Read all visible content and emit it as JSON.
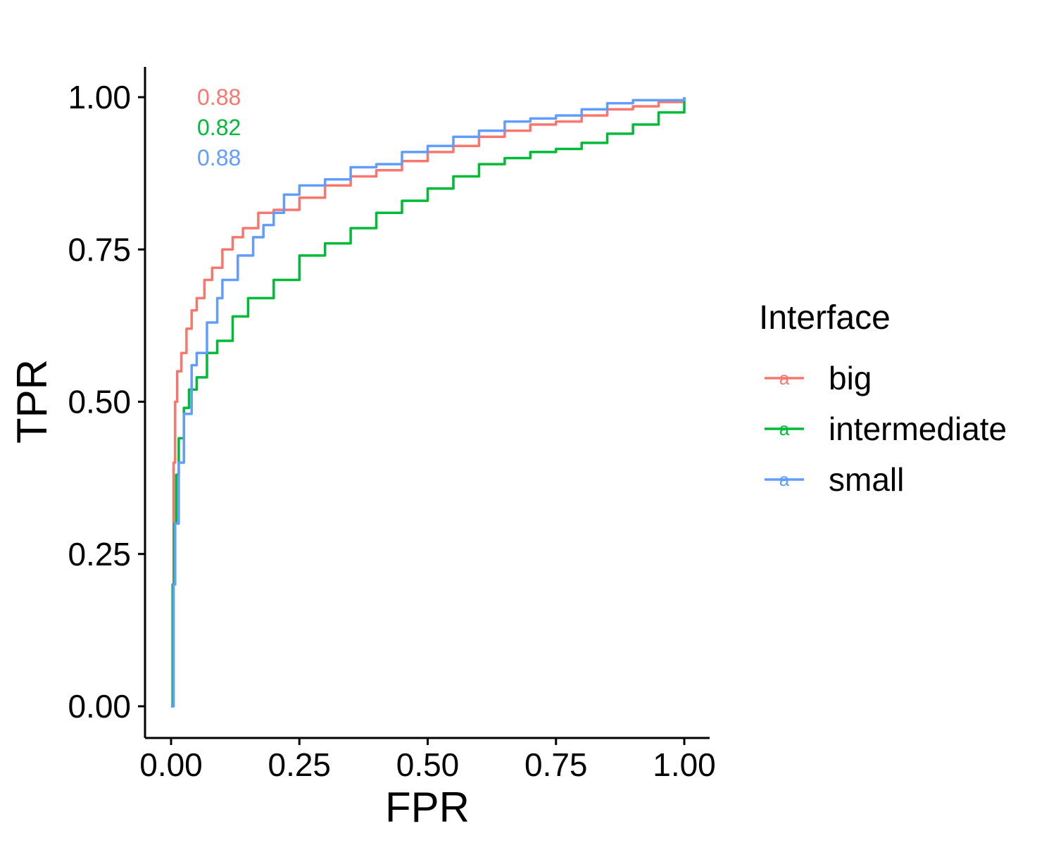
{
  "chart_data": {
    "type": "line",
    "title": "",
    "xlabel": "FPR",
    "ylabel": "TPR",
    "xlim": [
      0,
      1
    ],
    "ylim": [
      0,
      1
    ],
    "x_ticks": [
      "0.00",
      "0.25",
      "0.50",
      "0.75",
      "1.00"
    ],
    "y_ticks": [
      "0.00",
      "0.25",
      "0.50",
      "0.75",
      "1.00"
    ],
    "grid": false,
    "legend": {
      "title": "Interface",
      "placement": "right",
      "key_glyph": "a"
    },
    "annotations": [
      {
        "text": "0.88",
        "series": "big"
      },
      {
        "text": "0.82",
        "series": "intermediate"
      },
      {
        "text": "0.88",
        "series": "small"
      }
    ],
    "series": [
      {
        "name": "big",
        "color": "#F8766D",
        "points": [
          [
            0.0,
            0.0
          ],
          [
            0.003,
            0.2
          ],
          [
            0.005,
            0.4
          ],
          [
            0.008,
            0.5
          ],
          [
            0.012,
            0.55
          ],
          [
            0.02,
            0.58
          ],
          [
            0.03,
            0.62
          ],
          [
            0.04,
            0.65
          ],
          [
            0.05,
            0.67
          ],
          [
            0.065,
            0.7
          ],
          [
            0.08,
            0.72
          ],
          [
            0.1,
            0.75
          ],
          [
            0.12,
            0.77
          ],
          [
            0.14,
            0.785
          ],
          [
            0.17,
            0.81
          ],
          [
            0.2,
            0.815
          ],
          [
            0.25,
            0.835
          ],
          [
            0.3,
            0.855
          ],
          [
            0.35,
            0.87
          ],
          [
            0.4,
            0.88
          ],
          [
            0.45,
            0.895
          ],
          [
            0.5,
            0.91
          ],
          [
            0.55,
            0.92
          ],
          [
            0.6,
            0.935
          ],
          [
            0.65,
            0.945
          ],
          [
            0.7,
            0.955
          ],
          [
            0.75,
            0.96
          ],
          [
            0.8,
            0.97
          ],
          [
            0.85,
            0.98
          ],
          [
            0.9,
            0.985
          ],
          [
            0.95,
            0.992
          ],
          [
            1.0,
            1.0
          ]
        ]
      },
      {
        "name": "intermediate",
        "color": "#00BA38",
        "points": [
          [
            0.0,
            0.0
          ],
          [
            0.003,
            0.2
          ],
          [
            0.006,
            0.3
          ],
          [
            0.01,
            0.38
          ],
          [
            0.015,
            0.44
          ],
          [
            0.025,
            0.49
          ],
          [
            0.035,
            0.52
          ],
          [
            0.05,
            0.54
          ],
          [
            0.07,
            0.58
          ],
          [
            0.09,
            0.6
          ],
          [
            0.12,
            0.64
          ],
          [
            0.15,
            0.67
          ],
          [
            0.2,
            0.7
          ],
          [
            0.25,
            0.74
          ],
          [
            0.3,
            0.76
          ],
          [
            0.35,
            0.785
          ],
          [
            0.4,
            0.81
          ],
          [
            0.45,
            0.83
          ],
          [
            0.5,
            0.85
          ],
          [
            0.55,
            0.87
          ],
          [
            0.6,
            0.89
          ],
          [
            0.65,
            0.9
          ],
          [
            0.7,
            0.91
          ],
          [
            0.75,
            0.915
          ],
          [
            0.8,
            0.925
          ],
          [
            0.85,
            0.94
          ],
          [
            0.9,
            0.955
          ],
          [
            0.95,
            0.975
          ],
          [
            1.0,
            1.0
          ]
        ]
      },
      {
        "name": "small",
        "color": "#619CFF",
        "points": [
          [
            0.0,
            0.0
          ],
          [
            0.005,
            0.2
          ],
          [
            0.008,
            0.3
          ],
          [
            0.015,
            0.4
          ],
          [
            0.025,
            0.48
          ],
          [
            0.04,
            0.56
          ],
          [
            0.05,
            0.58
          ],
          [
            0.07,
            0.63
          ],
          [
            0.09,
            0.67
          ],
          [
            0.1,
            0.7
          ],
          [
            0.13,
            0.74
          ],
          [
            0.16,
            0.77
          ],
          [
            0.18,
            0.79
          ],
          [
            0.2,
            0.81
          ],
          [
            0.22,
            0.84
          ],
          [
            0.25,
            0.855
          ],
          [
            0.3,
            0.865
          ],
          [
            0.35,
            0.885
          ],
          [
            0.4,
            0.89
          ],
          [
            0.45,
            0.91
          ],
          [
            0.5,
            0.92
          ],
          [
            0.55,
            0.935
          ],
          [
            0.6,
            0.945
          ],
          [
            0.65,
            0.96
          ],
          [
            0.7,
            0.965
          ],
          [
            0.75,
            0.97
          ],
          [
            0.8,
            0.98
          ],
          [
            0.85,
            0.99
          ],
          [
            0.9,
            0.995
          ],
          [
            1.0,
            1.0
          ]
        ]
      }
    ]
  }
}
